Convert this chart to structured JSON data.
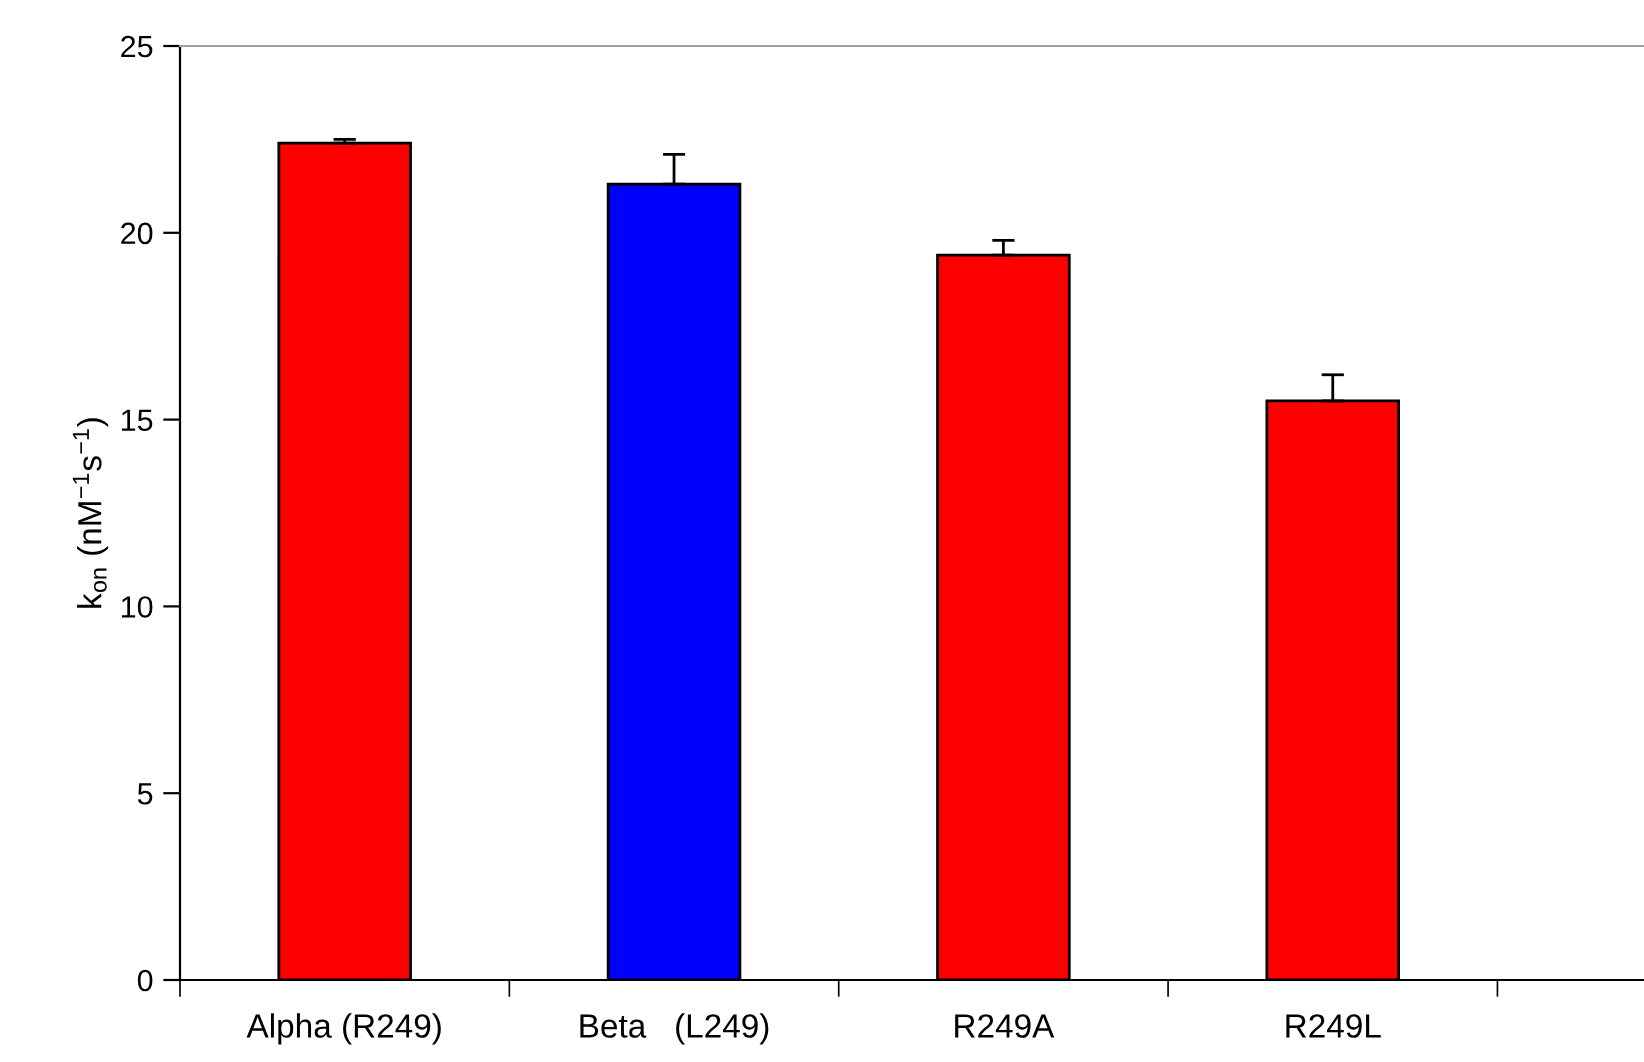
{
  "chart_data": {
    "type": "bar",
    "ylabel": "k$_{on}$ (nM$^{−1}$s$^{−1}$)",
    "categories": [
      "Alpha (R249)",
      "Beta   (L249)",
      "R249A",
      "R249L"
    ],
    "values": [
      22.4,
      21.3,
      19.4,
      15.5
    ],
    "colors": [
      "#ff0000",
      "#0000ff",
      "#ff0000",
      "#ff0000"
    ],
    "errors": [
      [
        22.4,
        22.5
      ],
      [
        21.3,
        22.1
      ],
      [
        19.4,
        19.8
      ],
      [
        15.5,
        16.2
      ]
    ],
    "ylim": [
      0,
      25
    ],
    "yticks": [
      0,
      5,
      10,
      15,
      20,
      25
    ],
    "grid": false,
    "legend": false
  }
}
